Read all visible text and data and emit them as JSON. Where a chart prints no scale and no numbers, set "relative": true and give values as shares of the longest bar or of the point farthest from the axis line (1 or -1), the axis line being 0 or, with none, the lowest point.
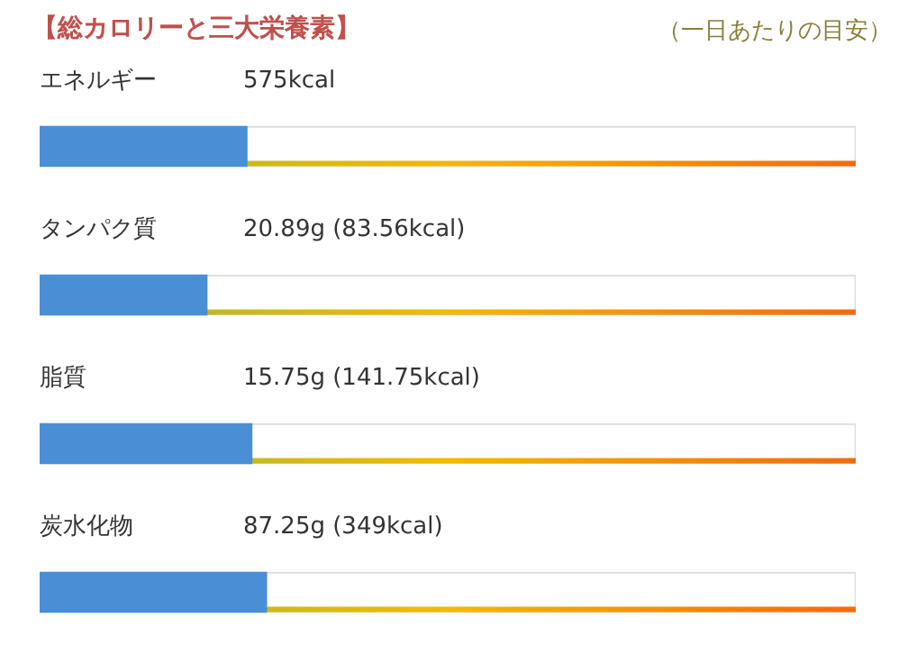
{
  "chart_data": {
    "type": "bar",
    "title": "【総カロリーと三大栄養素】",
    "subtitle": "（一日あたりの目安）",
    "orientation": "horizontal",
    "relative": true,
    "categories": [
      "エネルギー",
      "タンパク質",
      "脂質",
      "炭水化物"
    ],
    "series": [
      {
        "color": "#ffffff",
        "values": [
          1,
          1,
          1,
          1
        ]
      },
      {
        "color": "#4a8fd6",
        "values": [
          0.254,
          0.205,
          0.26,
          0.278
        ]
      }
    ],
    "annotations": [
      "575kcal",
      "20.89g (83.56kcal)",
      "15.75g (141.75kcal)",
      "87.25g (349kcal)"
    ]
  }
}
